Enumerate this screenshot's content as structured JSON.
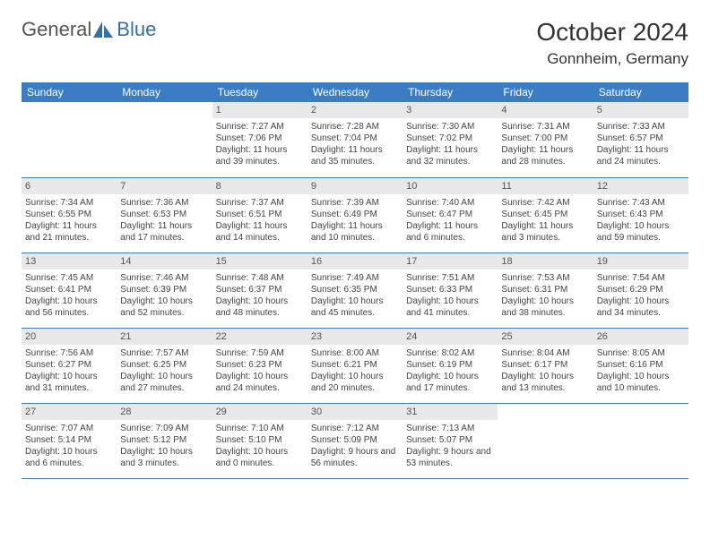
{
  "brand": {
    "name_a": "General",
    "name_b": "Blue",
    "color_a": "#6a6a6a",
    "color_b": "#2f6fb3"
  },
  "title": "October 2024",
  "location": "Gonnheim, Germany",
  "header_bg": "#3b7dc4",
  "day_bg": "#e8e8e8",
  "days": [
    "Sunday",
    "Monday",
    "Tuesday",
    "Wednesday",
    "Thursday",
    "Friday",
    "Saturday"
  ],
  "cells": [
    {
      "n": "",
      "sr": "",
      "ss": "",
      "dl": ""
    },
    {
      "n": "",
      "sr": "",
      "ss": "",
      "dl": ""
    },
    {
      "n": "1",
      "sr": "7:27 AM",
      "ss": "7:06 PM",
      "dl": "11 hours and 39 minutes."
    },
    {
      "n": "2",
      "sr": "7:28 AM",
      "ss": "7:04 PM",
      "dl": "11 hours and 35 minutes."
    },
    {
      "n": "3",
      "sr": "7:30 AM",
      "ss": "7:02 PM",
      "dl": "11 hours and 32 minutes."
    },
    {
      "n": "4",
      "sr": "7:31 AM",
      "ss": "7:00 PM",
      "dl": "11 hours and 28 minutes."
    },
    {
      "n": "5",
      "sr": "7:33 AM",
      "ss": "6:57 PM",
      "dl": "11 hours and 24 minutes."
    },
    {
      "n": "6",
      "sr": "7:34 AM",
      "ss": "6:55 PM",
      "dl": "11 hours and 21 minutes."
    },
    {
      "n": "7",
      "sr": "7:36 AM",
      "ss": "6:53 PM",
      "dl": "11 hours and 17 minutes."
    },
    {
      "n": "8",
      "sr": "7:37 AM",
      "ss": "6:51 PM",
      "dl": "11 hours and 14 minutes."
    },
    {
      "n": "9",
      "sr": "7:39 AM",
      "ss": "6:49 PM",
      "dl": "11 hours and 10 minutes."
    },
    {
      "n": "10",
      "sr": "7:40 AM",
      "ss": "6:47 PM",
      "dl": "11 hours and 6 minutes."
    },
    {
      "n": "11",
      "sr": "7:42 AM",
      "ss": "6:45 PM",
      "dl": "11 hours and 3 minutes."
    },
    {
      "n": "12",
      "sr": "7:43 AM",
      "ss": "6:43 PM",
      "dl": "10 hours and 59 minutes."
    },
    {
      "n": "13",
      "sr": "7:45 AM",
      "ss": "6:41 PM",
      "dl": "10 hours and 56 minutes."
    },
    {
      "n": "14",
      "sr": "7:46 AM",
      "ss": "6:39 PM",
      "dl": "10 hours and 52 minutes."
    },
    {
      "n": "15",
      "sr": "7:48 AM",
      "ss": "6:37 PM",
      "dl": "10 hours and 48 minutes."
    },
    {
      "n": "16",
      "sr": "7:49 AM",
      "ss": "6:35 PM",
      "dl": "10 hours and 45 minutes."
    },
    {
      "n": "17",
      "sr": "7:51 AM",
      "ss": "6:33 PM",
      "dl": "10 hours and 41 minutes."
    },
    {
      "n": "18",
      "sr": "7:53 AM",
      "ss": "6:31 PM",
      "dl": "10 hours and 38 minutes."
    },
    {
      "n": "19",
      "sr": "7:54 AM",
      "ss": "6:29 PM",
      "dl": "10 hours and 34 minutes."
    },
    {
      "n": "20",
      "sr": "7:56 AM",
      "ss": "6:27 PM",
      "dl": "10 hours and 31 minutes."
    },
    {
      "n": "21",
      "sr": "7:57 AM",
      "ss": "6:25 PM",
      "dl": "10 hours and 27 minutes."
    },
    {
      "n": "22",
      "sr": "7:59 AM",
      "ss": "6:23 PM",
      "dl": "10 hours and 24 minutes."
    },
    {
      "n": "23",
      "sr": "8:00 AM",
      "ss": "6:21 PM",
      "dl": "10 hours and 20 minutes."
    },
    {
      "n": "24",
      "sr": "8:02 AM",
      "ss": "6:19 PM",
      "dl": "10 hours and 17 minutes."
    },
    {
      "n": "25",
      "sr": "8:04 AM",
      "ss": "6:17 PM",
      "dl": "10 hours and 13 minutes."
    },
    {
      "n": "26",
      "sr": "8:05 AM",
      "ss": "6:16 PM",
      "dl": "10 hours and 10 minutes."
    },
    {
      "n": "27",
      "sr": "7:07 AM",
      "ss": "5:14 PM",
      "dl": "10 hours and 6 minutes."
    },
    {
      "n": "28",
      "sr": "7:09 AM",
      "ss": "5:12 PM",
      "dl": "10 hours and 3 minutes."
    },
    {
      "n": "29",
      "sr": "7:10 AM",
      "ss": "5:10 PM",
      "dl": "10 hours and 0 minutes."
    },
    {
      "n": "30",
      "sr": "7:12 AM",
      "ss": "5:09 PM",
      "dl": "9 hours and 56 minutes."
    },
    {
      "n": "31",
      "sr": "7:13 AM",
      "ss": "5:07 PM",
      "dl": "9 hours and 53 minutes."
    },
    {
      "n": "",
      "sr": "",
      "ss": "",
      "dl": ""
    },
    {
      "n": "",
      "sr": "",
      "ss": "",
      "dl": ""
    }
  ],
  "labels": {
    "sunrise": "Sunrise: ",
    "sunset": "Sunset: ",
    "daylight": "Daylight: "
  }
}
